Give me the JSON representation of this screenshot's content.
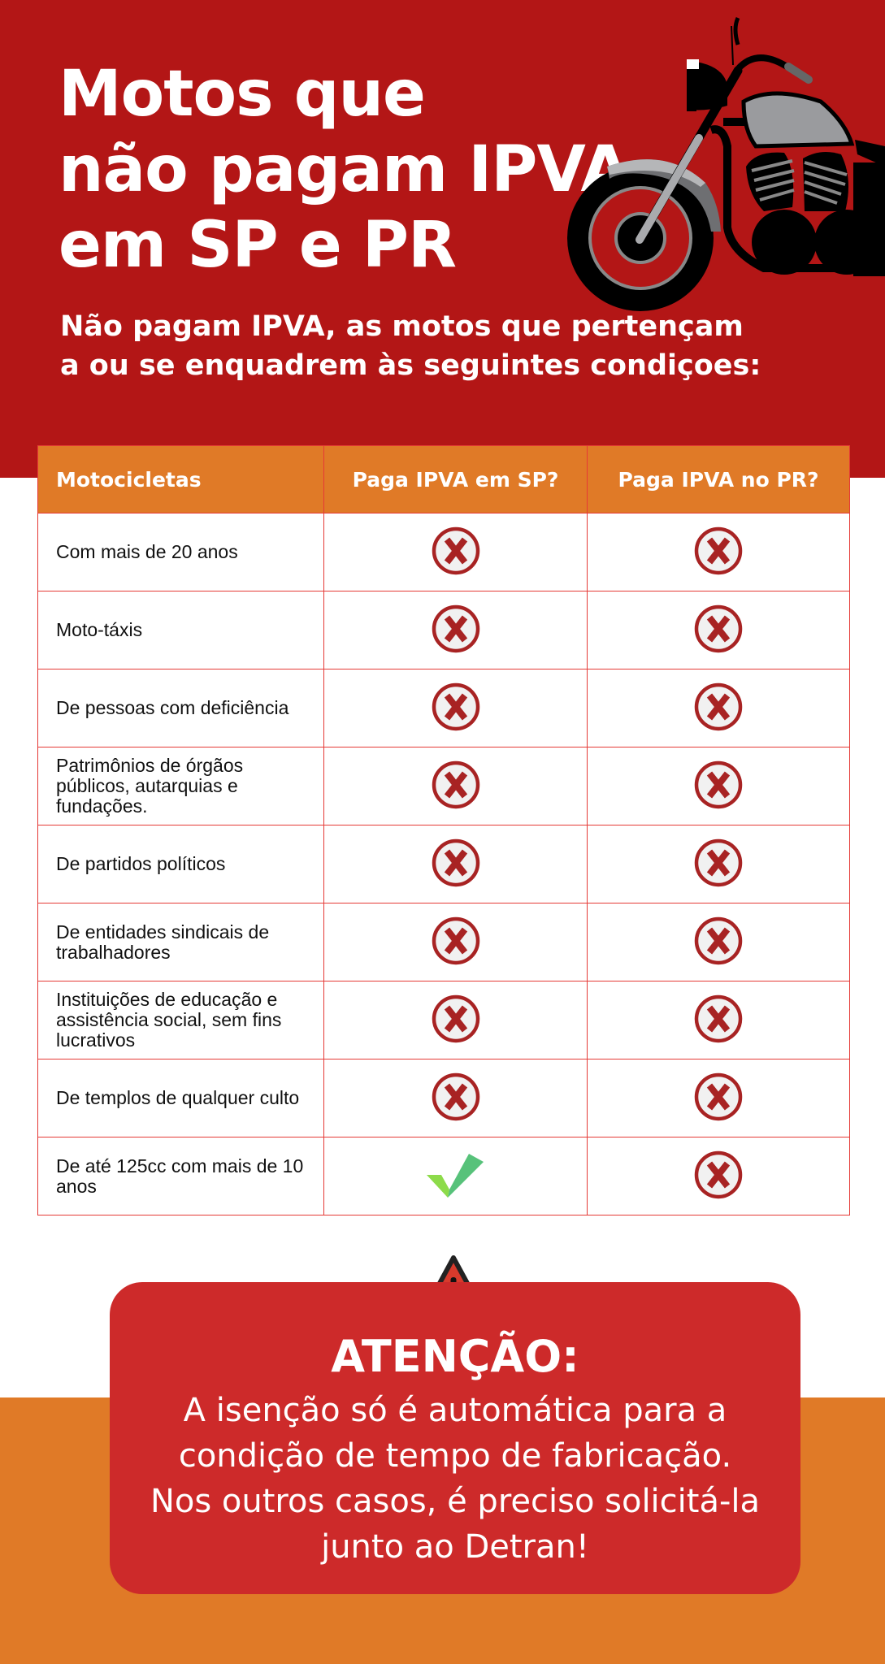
{
  "header": {
    "title_lines": [
      "Motos que",
      "não pagam IPVA",
      "em SP e PR"
    ],
    "subtitle_lines": [
      "Não pagam IPVA, as motos que pertençam",
      "a ou se enquadrem às seguintes condiçoes:"
    ]
  },
  "colors": {
    "red": "#b31616",
    "orange": "#e07a27",
    "grid": "#e53935",
    "alert": "#cd2a2a",
    "no": "#a82323",
    "yes": "#6ccf4f"
  },
  "table": {
    "headers": [
      "Motocicletas",
      "Paga IPVA em SP?",
      "Paga IPVA no PR?"
    ],
    "rows": [
      {
        "label": "Com mais de 20 anos",
        "sp": "no",
        "pr": "no"
      },
      {
        "label": "Moto-táxis",
        "sp": "no",
        "pr": "no"
      },
      {
        "label": "De pessoas com deficiência",
        "sp": "no",
        "pr": "no"
      },
      {
        "label": "Patrimônios de órgãos públicos, autarquias e fundações.",
        "sp": "no",
        "pr": "no"
      },
      {
        "label": "De partidos políticos",
        "sp": "no",
        "pr": "no"
      },
      {
        "label": "De entidades sindicais de trabalhadores",
        "sp": "no",
        "pr": "no"
      },
      {
        "label": "Instituições de educação e assistência social, sem fins lucrativos",
        "sp": "no",
        "pr": "no"
      },
      {
        "label": "De templos de qualquer culto",
        "sp": "no",
        "pr": "no"
      },
      {
        "label": "De até 125cc com mais de 10 anos",
        "sp": "yes",
        "pr": "no"
      }
    ]
  },
  "alert": {
    "icon": "warning-triangle-icon",
    "title": "ATENÇÃO:",
    "body_lines": [
      "A isenção só é automática para a",
      "condição de tempo de fabricação.",
      "Nos outros casos, é preciso solicitá-la",
      "junto ao Detran!"
    ]
  }
}
